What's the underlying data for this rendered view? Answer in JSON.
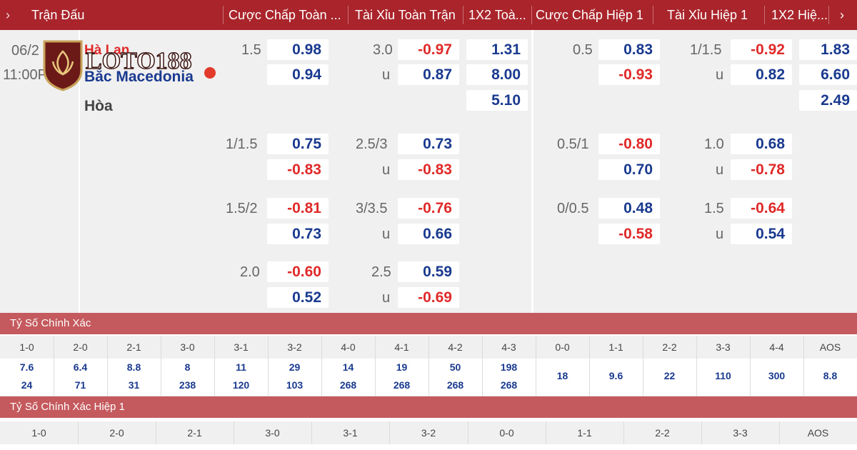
{
  "header": {
    "arrow": "›",
    "columns": [
      "Trận Đấu",
      "Cược Chấp Toàn ...",
      "Tài Xỉu Toàn Trận",
      "1X2 Toà...",
      "Cược Chấp Hiệp 1",
      "Tài Xỉu Hiệp 1",
      "1X2 Hiệ...",
      "›"
    ]
  },
  "match": {
    "date": "06/2",
    "time": "11:00P",
    "home": "Hà Lan",
    "away": "Bắc Macedonia",
    "draw": "Hòa",
    "logo_text": "LOTO188",
    "rows": [
      {
        "ah_line": "1.5",
        "ah_top": "0.98",
        "ah_bot": "0.94",
        "ou_line": "3.0",
        "ou_u": "u",
        "ou_top": "-0.97",
        "ou_bot": "0.87",
        "x12": [
          "1.31",
          "8.00",
          "5.10"
        ],
        "h1ah_line": "0.5",
        "h1ah_top": "0.83",
        "h1ah_bot": "-0.93",
        "h1ou_line": "1/1.5",
        "h1ou_u": "u",
        "h1ou_top": "-0.92",
        "h1ou_bot": "0.82",
        "h1x12": [
          "1.83",
          "6.60",
          "2.49"
        ]
      },
      {
        "ah_line": "1/1.5",
        "ah_top": "0.75",
        "ah_bot": "-0.83",
        "ou_line": "2.5/3",
        "ou_u": "u",
        "ou_top": "0.73",
        "ou_bot": "-0.83",
        "h1ah_line": "0.5/1",
        "h1ah_top": "-0.80",
        "h1ah_bot": "0.70",
        "h1ou_line": "1.0",
        "h1ou_u": "u",
        "h1ou_top": "0.68",
        "h1ou_bot": "-0.78"
      },
      {
        "ah_line": "1.5/2",
        "ah_top": "-0.81",
        "ah_bot": "0.73",
        "ou_line": "3/3.5",
        "ou_u": "u",
        "ou_top": "-0.76",
        "ou_bot": "0.66",
        "h1ah_line": "0/0.5",
        "h1ah_top": "0.48",
        "h1ah_bot": "-0.58",
        "h1ou_line": "1.5",
        "h1ou_u": "u",
        "h1ou_top": "-0.64",
        "h1ou_bot": "0.54"
      },
      {
        "ah_line": "2.0",
        "ah_top": "-0.60",
        "ah_bot": "0.52",
        "ou_line": "2.5",
        "ou_u": "u",
        "ou_top": "0.59",
        "ou_bot": "-0.69"
      }
    ]
  },
  "correct_score": {
    "title": "Tỷ Số Chính Xác",
    "headers": [
      "1-0",
      "2-0",
      "2-1",
      "3-0",
      "3-1",
      "3-2",
      "4-0",
      "4-1",
      "4-2",
      "4-3",
      "0-0",
      "1-1",
      "2-2",
      "3-3",
      "4-4",
      "AOS"
    ],
    "top": [
      "7.6",
      "6.4",
      "8.8",
      "8",
      "11",
      "29",
      "14",
      "19",
      "50",
      "198",
      "18",
      "9.6",
      "22",
      "110",
      "300",
      "8.8"
    ],
    "bottom": [
      "24",
      "71",
      "31",
      "238",
      "120",
      "103",
      "268",
      "268",
      "268",
      "268",
      "",
      "",
      "",
      "",
      "",
      ""
    ]
  },
  "correct_score_h1": {
    "title": "Tỷ Số Chính Xác Hiệp 1",
    "headers": [
      "1-0",
      "2-0",
      "2-1",
      "3-0",
      "3-1",
      "3-2",
      "0-0",
      "1-1",
      "2-2",
      "3-3",
      "AOS"
    ]
  },
  "colors": {
    "header_bg": "#a9252b",
    "band_bg": "#c45a5d",
    "positive": "#1a3a8f",
    "negative": "#e02a2a"
  }
}
